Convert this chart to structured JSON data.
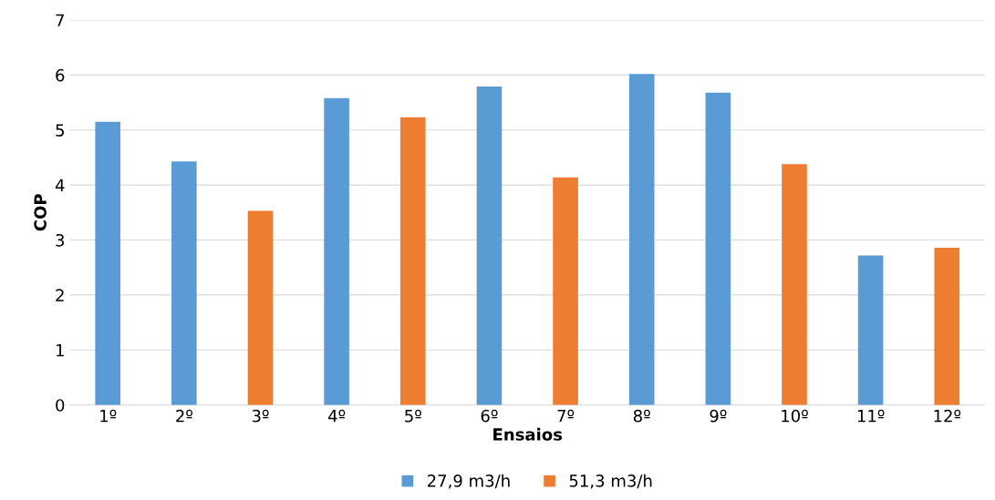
{
  "chart_data": {
    "type": "bar",
    "xlabel": "Ensaios",
    "ylabel": "COP",
    "categories": [
      "1º",
      "2º",
      "3º",
      "4º",
      "5º",
      "6º",
      "7º",
      "8º",
      "9º",
      "10º",
      "11º",
      "12º"
    ],
    "series": [
      {
        "name": "27,9 m3/h",
        "color": "#5b9bd5",
        "values": [
          5.15,
          4.43,
          null,
          5.58,
          null,
          5.79,
          null,
          6.02,
          5.68,
          null,
          2.72,
          null
        ]
      },
      {
        "name": "51,3 m3/h",
        "color": "#ed7d31",
        "values": [
          null,
          null,
          3.53,
          null,
          5.23,
          null,
          4.14,
          null,
          null,
          4.38,
          null,
          2.86
        ]
      }
    ],
    "ylim": [
      0,
      7
    ],
    "yticks": [
      0,
      1,
      2,
      3,
      4,
      5,
      6,
      7
    ],
    "grid": "y",
    "legend": "bottom"
  }
}
